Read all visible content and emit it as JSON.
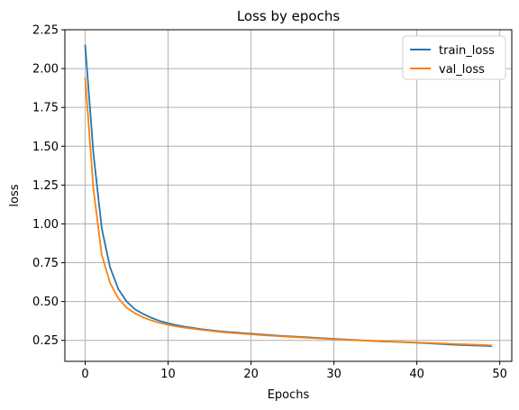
{
  "chart_data": {
    "type": "line",
    "title": "Loss by epochs",
    "xlabel": "Epochs",
    "ylabel": "loss",
    "xlim": [
      -2.45,
      51.45
    ],
    "ylim": [
      0.115,
      2.25
    ],
    "xticks": [
      0,
      10,
      20,
      30,
      40,
      50
    ],
    "yticks": [
      0.25,
      0.5,
      0.75,
      1.0,
      1.25,
      1.5,
      1.75,
      2.0,
      2.25
    ],
    "grid": true,
    "legend_position": "top-right",
    "x": [
      0,
      1,
      2,
      3,
      4,
      5,
      6,
      7,
      8,
      9,
      10,
      11,
      12,
      13,
      14,
      15,
      16,
      17,
      18,
      19,
      20,
      21,
      22,
      23,
      24,
      25,
      26,
      27,
      28,
      29,
      30,
      31,
      32,
      33,
      34,
      35,
      36,
      37,
      38,
      39,
      40,
      41,
      42,
      43,
      44,
      45,
      46,
      47,
      48,
      49
    ],
    "series": [
      {
        "name": "train_loss",
        "color": "#1f77b4",
        "values": [
          2.15,
          1.45,
          0.97,
          0.72,
          0.58,
          0.5,
          0.45,
          0.42,
          0.395,
          0.375,
          0.36,
          0.348,
          0.338,
          0.33,
          0.322,
          0.316,
          0.31,
          0.305,
          0.301,
          0.297,
          0.293,
          0.289,
          0.285,
          0.281,
          0.278,
          0.275,
          0.272,
          0.269,
          0.266,
          0.263,
          0.26,
          0.257,
          0.254,
          0.251,
          0.248,
          0.245,
          0.243,
          0.241,
          0.239,
          0.237,
          0.235,
          0.232,
          0.229,
          0.226,
          0.223,
          0.221,
          0.219,
          0.217,
          0.215,
          0.213
        ]
      },
      {
        "name": "val_loss",
        "color": "#ff7f0e",
        "values": [
          1.94,
          1.22,
          0.8,
          0.62,
          0.52,
          0.46,
          0.425,
          0.398,
          0.378,
          0.362,
          0.35,
          0.34,
          0.332,
          0.325,
          0.318,
          0.312,
          0.306,
          0.301,
          0.297,
          0.293,
          0.289,
          0.285,
          0.281,
          0.278,
          0.275,
          0.272,
          0.269,
          0.266,
          0.263,
          0.26,
          0.257,
          0.255,
          0.252,
          0.25,
          0.248,
          0.246,
          0.244,
          0.242,
          0.24,
          0.238,
          0.236,
          0.234,
          0.232,
          0.23,
          0.228,
          0.226,
          0.224,
          0.222,
          0.22,
          0.218
        ]
      }
    ]
  }
}
